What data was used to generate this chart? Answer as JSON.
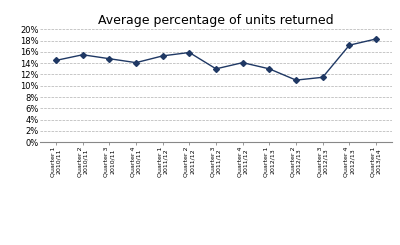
{
  "title": "Average percentage of units returned",
  "x_labels": [
    "Quarter 1\n2010/11",
    "Quarter 2\n2010/11",
    "Quarter 3\n2010/11",
    "Quarter 4\n2010/11",
    "Quarter 1\n2011/12",
    "Quarter 2\n2011/12",
    "Quarter 3\n2011/12",
    "Quarter 4\n2011/12",
    "Quarter 1\n2012/13",
    "Quarter 2\n2012/13",
    "Quarter 3\n2012/13",
    "Quarter 4\n2012/13",
    "Quarter 1\n2013/14"
  ],
  "values": [
    0.145,
    0.155,
    0.148,
    0.141,
    0.153,
    0.159,
    0.13,
    0.141,
    0.13,
    0.11,
    0.115,
    0.172,
    0.183
  ],
  "ylim": [
    0.0,
    0.2
  ],
  "yticks": [
    0.0,
    0.02,
    0.04,
    0.06,
    0.08,
    0.1,
    0.12,
    0.14,
    0.16,
    0.18,
    0.2
  ],
  "line_color": "#1F3864",
  "marker": "D",
  "marker_size": 3,
  "bg_color": "#ffffff",
  "grid_color": "#b0b0b0",
  "title_fontsize": 9,
  "xlabel_fontsize": 4.5,
  "ylabel_fontsize": 6.0
}
